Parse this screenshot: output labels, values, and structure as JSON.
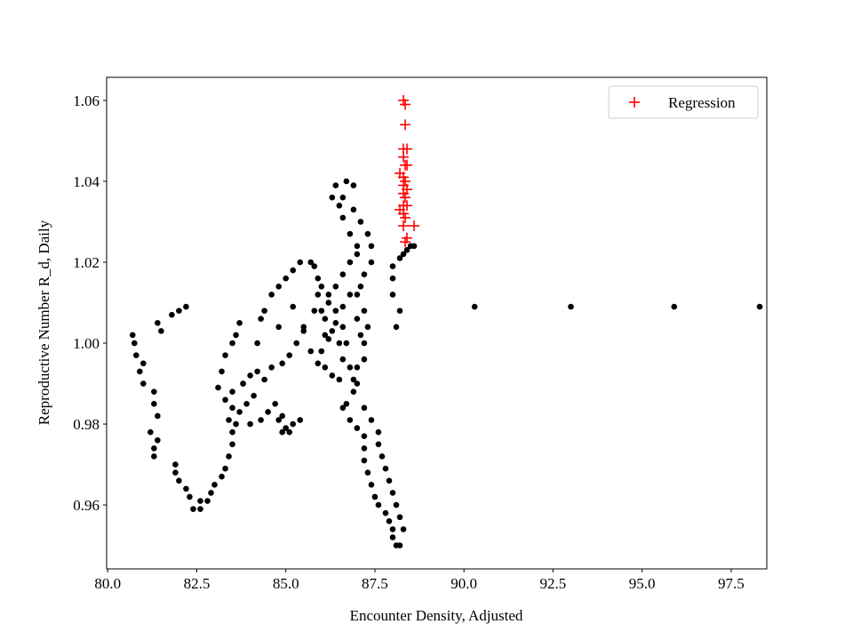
{
  "chart_data": {
    "type": "scatter",
    "x_label": "Encounter Density, Adjusted",
    "y_label": "Reproductive Number R_d, Daily",
    "xlim": [
      79.97,
      98.5
    ],
    "ylim": [
      0.9442,
      1.0657
    ],
    "xticks": [
      {
        "value": 80,
        "label": "80.0"
      },
      82.5,
      {
        "value": 85,
        "label": "85.0"
      },
      87.5,
      {
        "value": 90,
        "label": "90.0"
      },
      92.5,
      {
        "value": 95,
        "label": "95.0"
      },
      97.5
    ],
    "yticks": [
      0.96,
      0.98,
      {
        "value": 1,
        "label": "1.00"
      },
      1.02,
      1.04,
      1.06
    ],
    "legend": "upper right",
    "series": [
      {
        "color": "#000000",
        "marker": "circle",
        "x": [
          80.7,
          80.75,
          80.8,
          80.9,
          81.0,
          81.0,
          81.3,
          81.3,
          81.2,
          81.4,
          81.3,
          81.4,
          81.3,
          81.9,
          81.9,
          82.0,
          82.2,
          82.3,
          82.4,
          82.6,
          82.6,
          82.8,
          82.9,
          83.0,
          83.2,
          83.3,
          83.4,
          83.5,
          83.5,
          83.4,
          83.5,
          83.3,
          83.5,
          83.8,
          84.0,
          84.2,
          83.8,
          83.1,
          83.2,
          83.3,
          83.5,
          83.6,
          83.7,
          84.3,
          84.4,
          84.6,
          84.8,
          85.0,
          85.2,
          85.4,
          85.7,
          85.8,
          85.9,
          85.9,
          85.8,
          85.5,
          85.3,
          85.1,
          84.9,
          84.6,
          84.4,
          84.1,
          83.9,
          83.7,
          83.6,
          84.0,
          84.3,
          84.5,
          84.8,
          85.0,
          84.9,
          84.9,
          85.2,
          85.4,
          85.1,
          84.7,
          81.4,
          81.5,
          81.8,
          82.0,
          82.2,
          84.2,
          84.8,
          85.2,
          85.5,
          85.7,
          85.9,
          86.1,
          86.3,
          86.5,
          86.6,
          86.5,
          86.3,
          86.1,
          86.2,
          86.4,
          86.6,
          86.8,
          87.0,
          87.0,
          86.8,
          86.6,
          86.5,
          86.3,
          86.4,
          86.6,
          86.7,
          86.9,
          86.9,
          87.1,
          87.3,
          87.4,
          87.4,
          87.2,
          87.1,
          87.0,
          87.2,
          87.3,
          87.2,
          87.2,
          87.0,
          86.9,
          86.9,
          86.7,
          86.6,
          86.8,
          87.0,
          87.2,
          87.2,
          87.2,
          87.3,
          87.4,
          87.5,
          87.6,
          87.8,
          87.9,
          88.0,
          88.0,
          88.1,
          88.2,
          88.3,
          88.2,
          88.1,
          88.0,
          87.9,
          87.8,
          87.7,
          87.6,
          87.6,
          87.4,
          87.2,
          87.0,
          86.8,
          86.7,
          86.6,
          86.4,
          86.2,
          86.0,
          86.0,
          86.1,
          86.0,
          86.2,
          86.4,
          86.6,
          86.8,
          87.0,
          87.1,
          88.1,
          88.2,
          88.0,
          88.0,
          88.0,
          88.2,
          88.3,
          88.4,
          88.5,
          88.6,
          90.3,
          93.0,
          95.9,
          98.3
        ],
        "values": [
          1.002,
          1.0,
          0.997,
          0.993,
          0.995,
          0.99,
          0.988,
          0.985,
          0.978,
          0.982,
          0.974,
          0.976,
          0.972,
          0.97,
          0.968,
          0.966,
          0.964,
          0.962,
          0.959,
          0.959,
          0.961,
          0.961,
          0.963,
          0.965,
          0.967,
          0.969,
          0.972,
          0.975,
          0.978,
          0.981,
          0.984,
          0.986,
          0.988,
          0.99,
          0.992,
          0.993,
          0.99,
          0.989,
          0.993,
          0.997,
          1.0,
          1.002,
          1.005,
          1.006,
          1.008,
          1.012,
          1.014,
          1.016,
          1.018,
          1.02,
          1.02,
          1.019,
          1.016,
          1.012,
          1.008,
          1.004,
          1.0,
          0.997,
          0.995,
          0.994,
          0.991,
          0.987,
          0.985,
          0.983,
          0.98,
          0.98,
          0.981,
          0.983,
          0.981,
          0.979,
          0.978,
          0.982,
          0.98,
          0.981,
          0.978,
          0.985,
          1.005,
          1.003,
          1.007,
          1.008,
          1.009,
          1.0,
          1.004,
          1.009,
          1.003,
          0.998,
          0.995,
          0.994,
          0.992,
          0.991,
          0.996,
          1.0,
          1.003,
          1.006,
          1.01,
          1.014,
          1.017,
          1.02,
          1.022,
          1.024,
          1.027,
          1.031,
          1.034,
          1.036,
          1.039,
          1.036,
          1.04,
          1.039,
          1.033,
          1.03,
          1.027,
          1.024,
          1.02,
          1.017,
          1.014,
          1.012,
          1.008,
          1.004,
          1.0,
          0.996,
          0.994,
          0.991,
          0.988,
          0.985,
          0.984,
          0.981,
          0.979,
          0.977,
          0.974,
          0.971,
          0.968,
          0.965,
          0.962,
          0.96,
          0.958,
          0.956,
          0.954,
          0.952,
          0.95,
          0.95,
          0.954,
          0.957,
          0.96,
          0.963,
          0.966,
          0.969,
          0.972,
          0.975,
          0.978,
          0.981,
          0.984,
          0.99,
          0.994,
          1.0,
          1.004,
          1.008,
          1.012,
          1.014,
          1.008,
          1.002,
          0.998,
          1.001,
          1.005,
          1.009,
          1.012,
          1.006,
          1.002,
          1.004,
          1.008,
          1.012,
          1.016,
          1.019,
          1.021,
          1.022,
          1.023,
          1.024,
          1.024,
          1.009,
          1.009,
          1.009,
          1.009
        ]
      },
      {
        "name": "Regression",
        "color": "#ff0000",
        "marker": "plus",
        "x": [
          88.3,
          88.35,
          88.35,
          88.3,
          88.4,
          88.3,
          88.35,
          88.4,
          88.2,
          88.3,
          88.35,
          88.3,
          88.4,
          88.3,
          88.35,
          88.3,
          88.4,
          88.2,
          88.3,
          88.35,
          88.3,
          88.6,
          88.4,
          88.35
        ],
        "values": [
          1.06,
          1.059,
          1.054,
          1.048,
          1.048,
          1.046,
          1.044,
          1.044,
          1.042,
          1.041,
          1.04,
          1.039,
          1.038,
          1.037,
          1.036,
          1.034,
          1.034,
          1.033,
          1.032,
          1.031,
          1.029,
          1.029,
          1.026,
          1.025
        ]
      }
    ]
  }
}
